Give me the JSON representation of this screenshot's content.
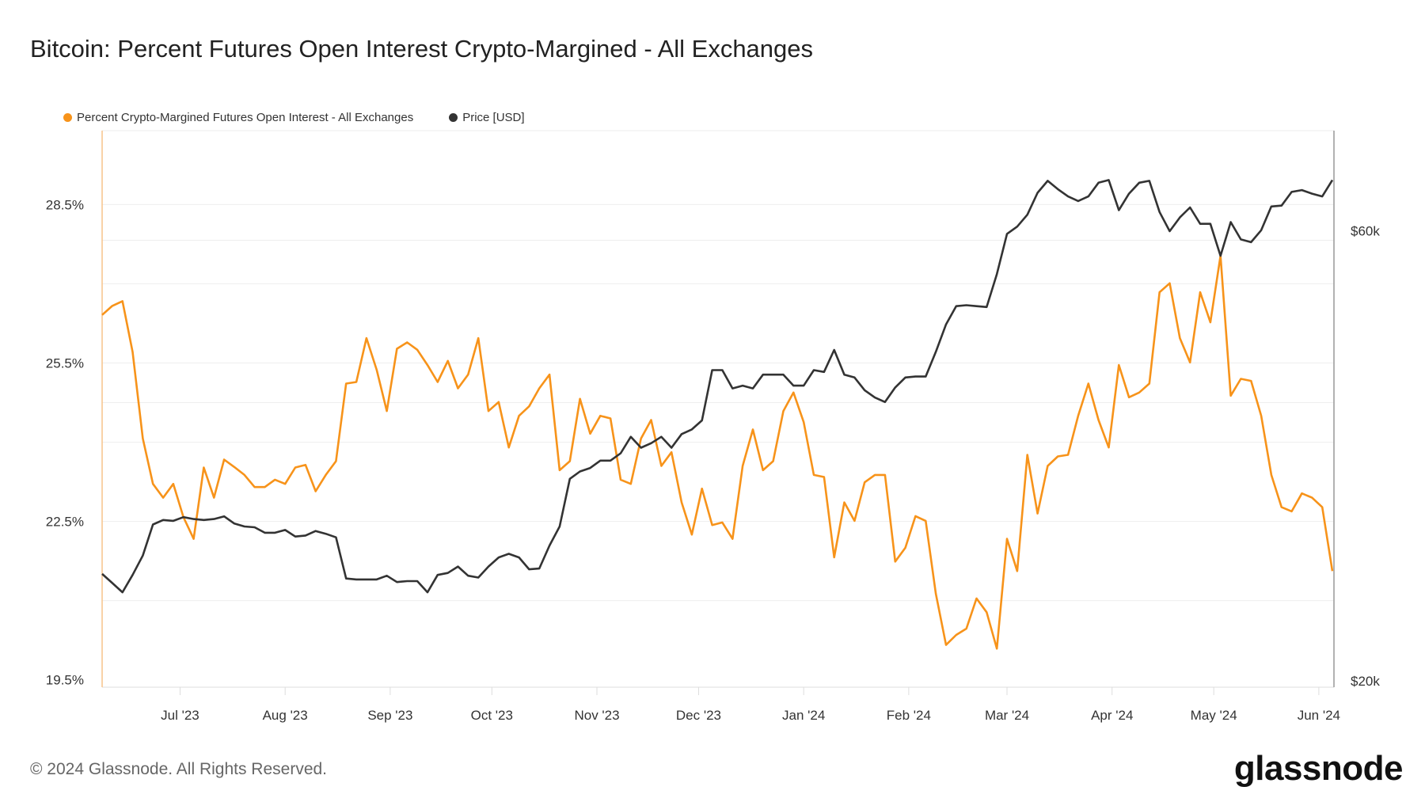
{
  "title": "Bitcoin: Percent Futures Open Interest Crypto-Margined - All Exchanges",
  "footer": "© 2024 Glassnode. All Rights Reserved.",
  "logo": "glassnode",
  "chart_data": {
    "type": "line",
    "title": "Bitcoin: Percent Futures Open Interest Crypto-Margined - All Exchanges",
    "legend_placement": "top-left",
    "grid": true,
    "x_ticks": [
      "Jul '23",
      "Aug '23",
      "Sep '23",
      "Oct '23",
      "Nov '23",
      "Dec '23",
      "Jan '24",
      "Feb '24",
      "Mar '24",
      "Apr '24",
      "May '24",
      "Jun '24"
    ],
    "x_tick_dates": [
      "2023-07-01",
      "2023-08-01",
      "2023-09-01",
      "2023-10-01",
      "2023-11-01",
      "2023-12-01",
      "2024-01-01",
      "2024-02-01",
      "2024-03-01",
      "2024-04-01",
      "2024-05-01",
      "2024-06-01"
    ],
    "xlim": [
      "2023-06-08",
      "2024-06-05"
    ],
    "y_left": {
      "ticks": [
        "19.5%",
        "22.5%",
        "25.5%",
        "28.5%"
      ],
      "tick_values": [
        19.5,
        22.5,
        25.5,
        28.5
      ],
      "range": [
        19.36,
        29.9
      ],
      "scale": "linear"
    },
    "y_right": {
      "ticks": [
        "$20k",
        "$60k"
      ],
      "tick_values": [
        20000,
        60000
      ],
      "range": [
        19640,
        78920
      ],
      "scale": "log"
    },
    "x": [
      "2023-06-08",
      "2023-06-11",
      "2023-06-14",
      "2023-06-17",
      "2023-06-20",
      "2023-06-23",
      "2023-06-26",
      "2023-06-29",
      "2023-07-02",
      "2023-07-05",
      "2023-07-08",
      "2023-07-11",
      "2023-07-14",
      "2023-07-17",
      "2023-07-20",
      "2023-07-23",
      "2023-07-26",
      "2023-07-29",
      "2023-08-01",
      "2023-08-04",
      "2023-08-07",
      "2023-08-10",
      "2023-08-13",
      "2023-08-16",
      "2023-08-19",
      "2023-08-22",
      "2023-08-25",
      "2023-08-28",
      "2023-08-31",
      "2023-09-03",
      "2023-09-06",
      "2023-09-09",
      "2023-09-12",
      "2023-09-15",
      "2023-09-18",
      "2023-09-21",
      "2023-09-24",
      "2023-09-27",
      "2023-09-30",
      "2023-10-03",
      "2023-10-06",
      "2023-10-09",
      "2023-10-12",
      "2023-10-15",
      "2023-10-18",
      "2023-10-21",
      "2023-10-24",
      "2023-10-27",
      "2023-10-30",
      "2023-11-02",
      "2023-11-05",
      "2023-11-08",
      "2023-11-11",
      "2023-11-14",
      "2023-11-17",
      "2023-11-20",
      "2023-11-23",
      "2023-11-26",
      "2023-11-29",
      "2023-12-02",
      "2023-12-05",
      "2023-12-08",
      "2023-12-11",
      "2023-12-14",
      "2023-12-17",
      "2023-12-20",
      "2023-12-23",
      "2023-12-26",
      "2023-12-29",
      "2024-01-01",
      "2024-01-04",
      "2024-01-07",
      "2024-01-10",
      "2024-01-13",
      "2024-01-16",
      "2024-01-19",
      "2024-01-22",
      "2024-01-25",
      "2024-01-28",
      "2024-01-31",
      "2024-02-03",
      "2024-02-06",
      "2024-02-09",
      "2024-02-12",
      "2024-02-15",
      "2024-02-18",
      "2024-02-21",
      "2024-02-24",
      "2024-02-27",
      "2024-03-01",
      "2024-03-04",
      "2024-03-07",
      "2024-03-10",
      "2024-03-13",
      "2024-03-16",
      "2024-03-19",
      "2024-03-22",
      "2024-03-25",
      "2024-03-28",
      "2024-03-31",
      "2024-04-03",
      "2024-04-06",
      "2024-04-09",
      "2024-04-12",
      "2024-04-15",
      "2024-04-18",
      "2024-04-21",
      "2024-04-24",
      "2024-04-27",
      "2024-04-30",
      "2024-05-03",
      "2024-05-06",
      "2024-05-09",
      "2024-05-12",
      "2024-05-15",
      "2024-05-18",
      "2024-05-21",
      "2024-05-24",
      "2024-05-27",
      "2024-05-30",
      "2024-06-02",
      "2024-06-05"
    ],
    "series": [
      {
        "name": "Percent Crypto-Margined Futures Open Interest - All Exchanges",
        "axis": "left",
        "color": "#f7931a",
        "values": [
          26.41,
          26.58,
          26.67,
          25.71,
          24.07,
          23.21,
          22.95,
          23.21,
          22.58,
          22.17,
          23.52,
          22.95,
          23.67,
          23.53,
          23.38,
          23.15,
          23.15,
          23.29,
          23.21,
          23.52,
          23.57,
          23.07,
          23.38,
          23.64,
          25.11,
          25.14,
          25.97,
          25.37,
          24.59,
          25.77,
          25.89,
          25.75,
          25.46,
          25.14,
          25.54,
          25.02,
          25.28,
          25.97,
          24.59,
          24.76,
          23.9,
          24.5,
          24.68,
          25.02,
          25.28,
          23.47,
          23.64,
          24.82,
          24.16,
          24.5,
          24.45,
          23.29,
          23.21,
          24.07,
          24.42,
          23.55,
          23.81,
          22.86,
          22.25,
          23.12,
          22.43,
          22.48,
          22.17,
          23.55,
          24.24,
          23.47,
          23.64,
          24.59,
          24.94,
          24.38,
          23.38,
          23.34,
          21.82,
          22.86,
          22.51,
          23.24,
          23.38,
          23.38,
          21.74,
          22.0,
          22.6,
          22.51,
          21.13,
          20.16,
          20.35,
          20.47,
          21.04,
          20.78,
          20.09,
          22.17,
          21.56,
          23.76,
          22.65,
          23.55,
          23.73,
          23.76,
          24.5,
          25.11,
          24.42,
          23.9,
          25.46,
          24.85,
          24.94,
          25.11,
          26.84,
          27.01,
          25.97,
          25.51,
          26.84,
          26.27,
          27.53,
          24.88,
          25.2,
          25.16,
          24.5,
          23.38,
          22.77,
          22.69,
          23.03,
          22.95,
          22.77,
          21.56
        ]
      },
      {
        "name": "Price [USD]",
        "axis": "right",
        "color": "#333333",
        "values": [
          26070,
          25480,
          24900,
          26000,
          27290,
          29490,
          29830,
          29760,
          30040,
          29900,
          29830,
          29900,
          30100,
          29560,
          29350,
          29290,
          28890,
          28890,
          29090,
          28620,
          28690,
          29020,
          28820,
          28560,
          25770,
          25710,
          25710,
          25710,
          25950,
          25540,
          25600,
          25600,
          24900,
          26000,
          26130,
          26550,
          25950,
          25830,
          26550,
          27160,
          27410,
          27160,
          26370,
          26420,
          27980,
          29350,
          33060,
          33670,
          33970,
          34600,
          34600,
          35240,
          36720,
          35730,
          36140,
          36720,
          35730,
          36970,
          37400,
          38260,
          43380,
          43380,
          41440,
          41730,
          41440,
          42890,
          42890,
          42890,
          41730,
          41730,
          43380,
          43180,
          45620,
          42890,
          42590,
          41250,
          40510,
          40050,
          41540,
          42590,
          42690,
          42690,
          45410,
          48630,
          50900,
          51020,
          50900,
          50790,
          55140,
          60970,
          62090,
          63960,
          67570,
          69610,
          68190,
          66950,
          66190,
          66950,
          69290,
          69760,
          64700,
          67420,
          69290,
          69610,
          64400,
          61380,
          63530,
          65140,
          62520,
          62520,
          57720,
          62800,
          60140,
          59720,
          61530,
          65290,
          65440,
          67720,
          68030,
          67420,
          66950,
          69760
        ]
      }
    ]
  }
}
